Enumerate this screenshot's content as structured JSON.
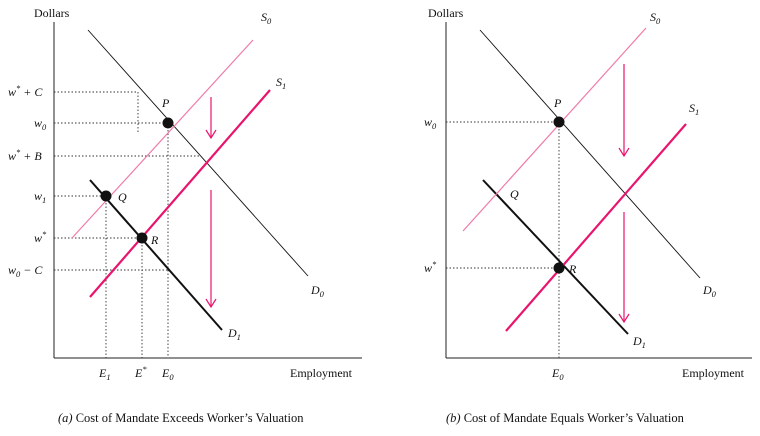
{
  "panel_a": {
    "y_axis_label": "Dollars",
    "x_axis_label": "Employment",
    "caption_letter": "(a)",
    "caption_text": " Cost of Mandate Exceeds Worker’s Valuation",
    "supply_labels": [
      "S",
      "0",
      "S",
      "1"
    ],
    "demand_labels": [
      "D",
      "0",
      "D",
      "1"
    ],
    "point_labels": [
      "P",
      "Q",
      "R"
    ],
    "y_ticks": [
      {
        "base": "w",
        "sup": "*",
        "rest": " + C"
      },
      {
        "base": "w",
        "sub": "0",
        "rest": ""
      },
      {
        "base": "w",
        "sup": "*",
        "rest": " + B"
      },
      {
        "base": "w",
        "sub": "1",
        "rest": ""
      },
      {
        "base": "w",
        "sup": "*",
        "rest": ""
      },
      {
        "base": "w",
        "sub": "0",
        "rest": " − C"
      }
    ],
    "x_ticks": [
      {
        "base": "E",
        "sub": "1"
      },
      {
        "base": "E",
        "sup": "*"
      },
      {
        "base": "E",
        "sub": "0"
      }
    ]
  },
  "panel_b": {
    "y_axis_label": "Dollars",
    "x_axis_label": "Employment",
    "caption_letter": "(b)",
    "caption_text": " Cost of Mandate Equals Worker’s Valuation",
    "supply_labels": [
      "S",
      "0",
      "S",
      "1"
    ],
    "demand_labels": [
      "D",
      "0",
      "D",
      "1"
    ],
    "point_labels": [
      "P",
      "Q",
      "R"
    ],
    "y_ticks": [
      {
        "base": "w",
        "sub": "0",
        "rest": ""
      },
      {
        "base": "w",
        "sup": "*",
        "rest": ""
      }
    ],
    "x_ticks": [
      {
        "base": "E",
        "sub": "0"
      }
    ]
  },
  "colors": {
    "supply": "#e8146e",
    "supply_light": "#f07aa8",
    "demand": "#111111",
    "axis": "#222222",
    "guide": "#333333"
  }
}
